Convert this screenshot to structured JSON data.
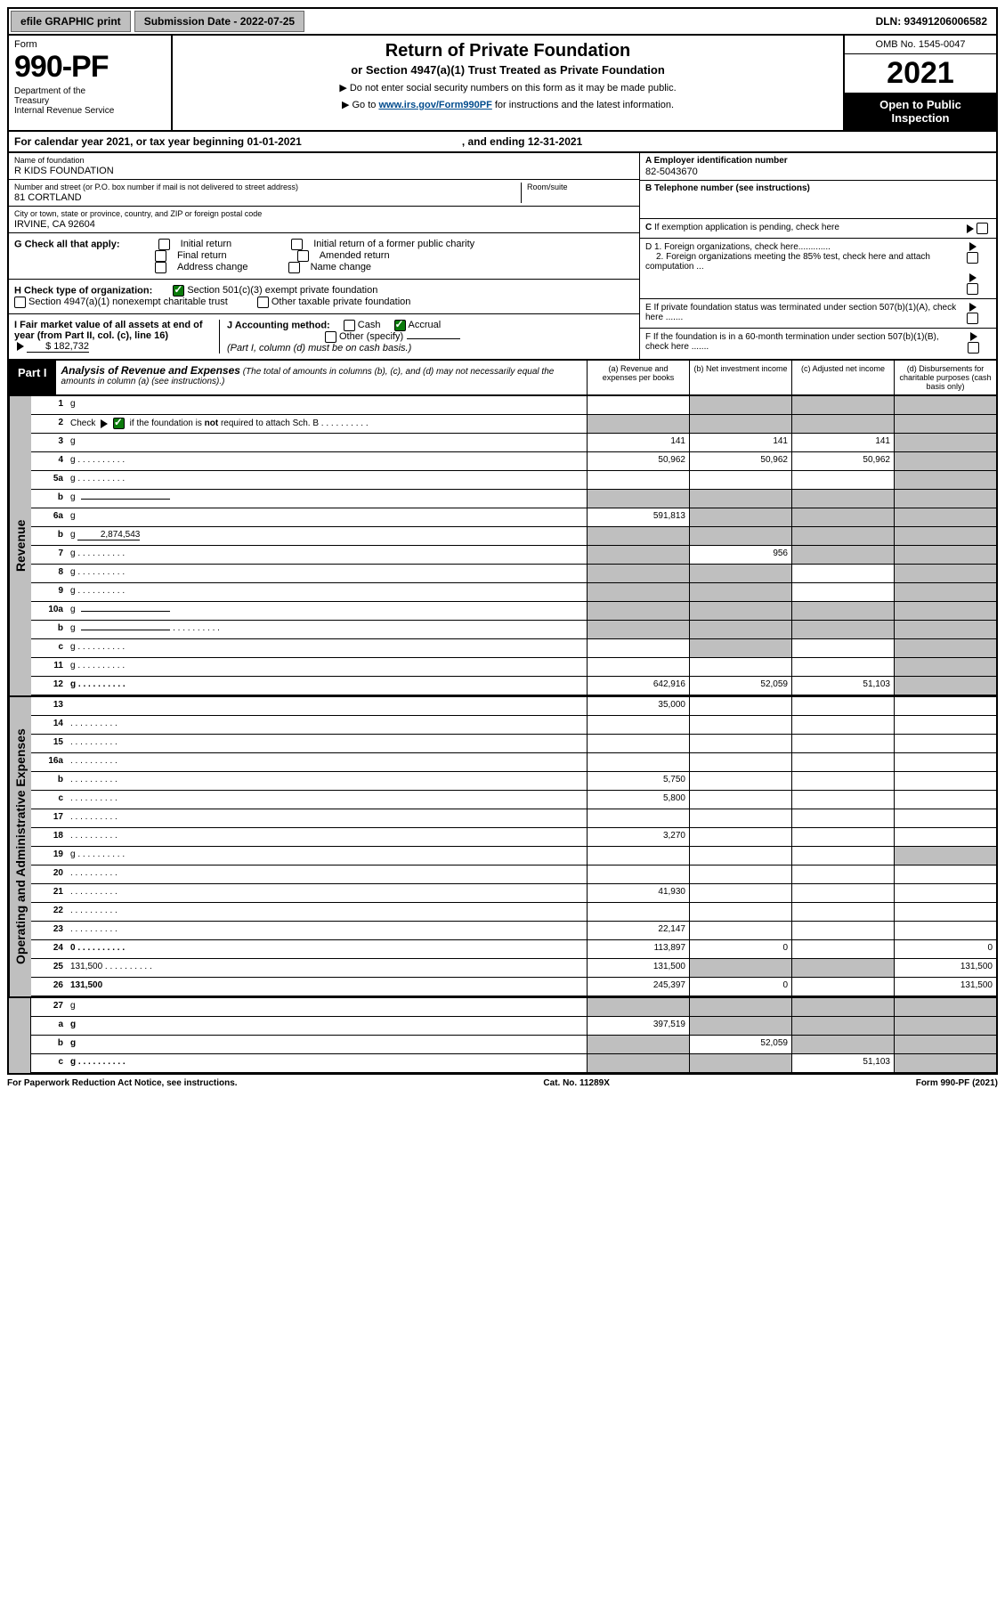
{
  "top": {
    "efile": "efile GRAPHIC print",
    "submission": "Submission Date - 2022-07-25",
    "dln": "DLN: 93491206006582"
  },
  "header": {
    "form_word": "Form",
    "form_no": "990-PF",
    "dept": "Department of the Treasury\nInternal Revenue Service",
    "title1": "Return of Private Foundation",
    "title2": "or Section 4947(a)(1) Trust Treated as Private Foundation",
    "note1": "▶ Do not enter social security numbers on this form as it may be made public.",
    "note2_pre": "▶ Go to ",
    "note2_link": "www.irs.gov/Form990PF",
    "note2_post": " for instructions and the latest information.",
    "omb": "OMB No. 1545-0047",
    "year": "2021",
    "open": "Open to Public Inspection"
  },
  "calendar": {
    "text": "For calendar year 2021, or tax year beginning 01-01-2021",
    "ending": ", and ending 12-31-2021"
  },
  "info": {
    "name_label": "Name of foundation",
    "name": "R KIDS FOUNDATION",
    "addr_label": "Number and street (or P.O. box number if mail is not delivered to street address)",
    "addr": "81 CORTLAND",
    "room_label": "Room/suite",
    "city_label": "City or town, state or province, country, and ZIP or foreign postal code",
    "city": "IRVINE, CA  92604",
    "a_label": "A Employer identification number",
    "a_val": "82-5043670",
    "b_label": "B Telephone number (see instructions)",
    "c_label": "C If exemption application is pending, check here",
    "d1": "D 1. Foreign organizations, check here.............",
    "d2": "2. Foreign organizations meeting the 85% test, check here and attach computation ...",
    "e_label": "E  If private foundation status was terminated under section 507(b)(1)(A), check here .......",
    "f_label": "F  If the foundation is in a 60-month termination under section 507(b)(1)(B), check here ......."
  },
  "g": {
    "label": "G Check all that apply:",
    "opts": [
      "Initial return",
      "Final return",
      "Address change",
      "Initial return of a former public charity",
      "Amended return",
      "Name change"
    ]
  },
  "h": {
    "label": "H Check type of organization:",
    "opt1": "Section 501(c)(3) exempt private foundation",
    "opt2": "Section 4947(a)(1) nonexempt charitable trust",
    "opt3": "Other taxable private foundation"
  },
  "i": {
    "label": "I Fair market value of all assets at end of year (from Part II, col. (c), line 16)",
    "val": "$  182,732"
  },
  "j": {
    "label": "J Accounting method:",
    "cash": "Cash",
    "accrual": "Accrual",
    "other": "Other (specify)",
    "note": "(Part I, column (d) must be on cash basis.)"
  },
  "part1": {
    "label": "Part I",
    "title": "Analysis of Revenue and Expenses",
    "desc": " (The total of amounts in columns (b), (c), and (d) may not necessarily equal the amounts in column (a) (see instructions).)",
    "col_a": "(a)   Revenue and expenses per books",
    "col_b": "(b)   Net investment income",
    "col_c": "(c)   Adjusted net income",
    "col_d": "(d)   Disbursements for charitable purposes (cash basis only)"
  },
  "side": {
    "rev": "Revenue",
    "exp": "Operating and Administrative Expenses"
  },
  "rows": [
    {
      "n": "1",
      "d": "g",
      "a": "",
      "b": "g",
      "c": "g"
    },
    {
      "n": "2",
      "d": "g",
      "dots": true,
      "a": "g",
      "b": "g",
      "c": "g",
      "checked": true
    },
    {
      "n": "3",
      "d": "g",
      "a": "141",
      "b": "141",
      "c": "141"
    },
    {
      "n": "4",
      "d": "g",
      "dots": true,
      "a": "50,962",
      "b": "50,962",
      "c": "50,962"
    },
    {
      "n": "5a",
      "d": "g",
      "dots": true,
      "a": "",
      "b": "",
      "c": ""
    },
    {
      "n": "b",
      "d": "g",
      "inline": true,
      "a": "g",
      "b": "g",
      "c": "g"
    },
    {
      "n": "6a",
      "d": "g",
      "a": "591,813",
      "b": "g",
      "c": "g"
    },
    {
      "n": "b",
      "d": "g",
      "inline_val": "2,874,543",
      "a": "g",
      "b": "g",
      "c": "g"
    },
    {
      "n": "7",
      "d": "g",
      "dots": true,
      "a": "g",
      "b": "956",
      "c": "g"
    },
    {
      "n": "8",
      "d": "g",
      "dots": true,
      "a": "g",
      "b": "g",
      "c": ""
    },
    {
      "n": "9",
      "d": "g",
      "dots": true,
      "a": "g",
      "b": "g",
      "c": ""
    },
    {
      "n": "10a",
      "d": "g",
      "inline": true,
      "a": "g",
      "b": "g",
      "c": "g"
    },
    {
      "n": "b",
      "d": "g",
      "dots": true,
      "inline": true,
      "a": "g",
      "b": "g",
      "c": "g"
    },
    {
      "n": "c",
      "d": "g",
      "dots": true,
      "a": "",
      "b": "g",
      "c": ""
    },
    {
      "n": "11",
      "d": "g",
      "dots": true,
      "a": "",
      "b": "",
      "c": ""
    },
    {
      "n": "12",
      "d": "g",
      "dots": true,
      "bold": true,
      "a": "642,916",
      "b": "52,059",
      "c": "51,103"
    }
  ],
  "exp_rows": [
    {
      "n": "13",
      "d": "",
      "a": "35,000",
      "b": "",
      "c": ""
    },
    {
      "n": "14",
      "d": "",
      "dots": true,
      "a": "",
      "b": "",
      "c": ""
    },
    {
      "n": "15",
      "d": "",
      "dots": true,
      "a": "",
      "b": "",
      "c": ""
    },
    {
      "n": "16a",
      "d": "",
      "dots": true,
      "a": "",
      "b": "",
      "c": ""
    },
    {
      "n": "b",
      "d": "",
      "dots": true,
      "a": "5,750",
      "b": "",
      "c": ""
    },
    {
      "n": "c",
      "d": "",
      "dots": true,
      "a": "5,800",
      "b": "",
      "c": ""
    },
    {
      "n": "17",
      "d": "",
      "dots": true,
      "a": "",
      "b": "",
      "c": ""
    },
    {
      "n": "18",
      "d": "",
      "dots": true,
      "a": "3,270",
      "b": "",
      "c": ""
    },
    {
      "n": "19",
      "d": "g",
      "dots": true,
      "a": "",
      "b": "",
      "c": ""
    },
    {
      "n": "20",
      "d": "",
      "dots": true,
      "a": "",
      "b": "",
      "c": ""
    },
    {
      "n": "21",
      "d": "",
      "dots": true,
      "a": "41,930",
      "b": "",
      "c": ""
    },
    {
      "n": "22",
      "d": "",
      "dots": true,
      "a": "",
      "b": "",
      "c": ""
    },
    {
      "n": "23",
      "d": "",
      "dots": true,
      "a": "22,147",
      "b": "",
      "c": ""
    },
    {
      "n": "24",
      "d": "0",
      "dots": true,
      "bold": true,
      "a": "113,897",
      "b": "0",
      "c": ""
    },
    {
      "n": "25",
      "d": "131,500",
      "dots": true,
      "a": "131,500",
      "b": "g",
      "c": "g"
    },
    {
      "n": "26",
      "d": "131,500",
      "bold": true,
      "a": "245,397",
      "b": "0",
      "c": ""
    }
  ],
  "bottom_rows": [
    {
      "n": "27",
      "d": "g",
      "a": "g",
      "b": "g",
      "c": "g"
    },
    {
      "n": "a",
      "d": "g",
      "bold": true,
      "a": "397,519",
      "b": "g",
      "c": "g"
    },
    {
      "n": "b",
      "d": "g",
      "bold": true,
      "a": "g",
      "b": "52,059",
      "c": "g"
    },
    {
      "n": "c",
      "d": "g",
      "dots": true,
      "bold": true,
      "a": "g",
      "b": "g",
      "c": "51,103"
    }
  ],
  "footer": {
    "left": "For Paperwork Reduction Act Notice, see instructions.",
    "mid": "Cat. No. 11289X",
    "right": "Form 990-PF (2021)"
  }
}
